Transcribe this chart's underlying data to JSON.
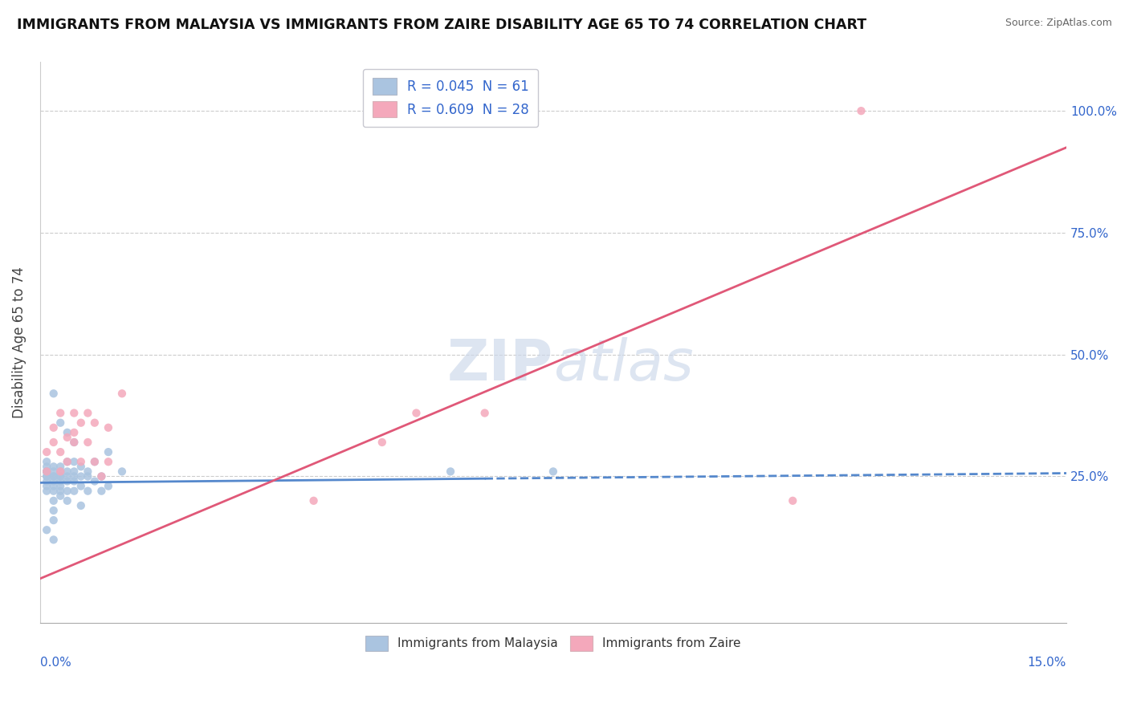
{
  "title": "IMMIGRANTS FROM MALAYSIA VS IMMIGRANTS FROM ZAIRE DISABILITY AGE 65 TO 74 CORRELATION CHART",
  "source": "Source: ZipAtlas.com",
  "ylabel": "Disability Age 65 to 74",
  "ylabel_right_labels": [
    "100.0%",
    "75.0%",
    "50.0%",
    "25.0%"
  ],
  "ylabel_right_vals": [
    1.0,
    0.75,
    0.5,
    0.25
  ],
  "xlim": [
    0.0,
    0.15
  ],
  "ylim": [
    -0.05,
    1.1
  ],
  "legend_r1": "R = 0.045  N = 61",
  "legend_r2": "R = 0.609  N = 28",
  "series1_color": "#aac4e0",
  "series2_color": "#f4a8bb",
  "line1_color": "#5588cc",
  "line2_color": "#e05878",
  "watermark_color": "#ccd8ea",
  "malaysia_x": [
    0.001,
    0.001,
    0.001,
    0.001,
    0.001,
    0.001,
    0.001,
    0.001,
    0.001,
    0.001,
    0.002,
    0.002,
    0.002,
    0.002,
    0.002,
    0.002,
    0.002,
    0.002,
    0.002,
    0.002,
    0.003,
    0.003,
    0.003,
    0.003,
    0.003,
    0.003,
    0.003,
    0.003,
    0.004,
    0.004,
    0.004,
    0.004,
    0.004,
    0.004,
    0.005,
    0.005,
    0.005,
    0.005,
    0.005,
    0.006,
    0.006,
    0.006,
    0.006,
    0.007,
    0.007,
    0.007,
    0.008,
    0.008,
    0.009,
    0.009,
    0.01,
    0.01,
    0.012,
    0.06,
    0.075,
    0.002,
    0.003,
    0.004,
    0.005,
    0.001,
    0.002
  ],
  "malaysia_y": [
    0.26,
    0.25,
    0.24,
    0.23,
    0.26,
    0.27,
    0.25,
    0.26,
    0.22,
    0.28,
    0.25,
    0.24,
    0.27,
    0.26,
    0.23,
    0.25,
    0.22,
    0.2,
    0.18,
    0.16,
    0.26,
    0.25,
    0.24,
    0.27,
    0.23,
    0.22,
    0.21,
    0.25,
    0.28,
    0.25,
    0.26,
    0.24,
    0.22,
    0.2,
    0.26,
    0.25,
    0.24,
    0.28,
    0.22,
    0.27,
    0.25,
    0.23,
    0.19,
    0.26,
    0.25,
    0.22,
    0.28,
    0.24,
    0.25,
    0.22,
    0.3,
    0.23,
    0.26,
    0.26,
    0.26,
    0.42,
    0.36,
    0.34,
    0.32,
    0.14,
    0.12
  ],
  "zaire_x": [
    0.001,
    0.001,
    0.002,
    0.002,
    0.003,
    0.003,
    0.003,
    0.004,
    0.004,
    0.005,
    0.005,
    0.005,
    0.006,
    0.006,
    0.007,
    0.007,
    0.008,
    0.008,
    0.009,
    0.01,
    0.01,
    0.012,
    0.05,
    0.055,
    0.065,
    0.04,
    0.11,
    0.12
  ],
  "zaire_y": [
    0.26,
    0.3,
    0.32,
    0.35,
    0.3,
    0.38,
    0.26,
    0.33,
    0.28,
    0.38,
    0.32,
    0.34,
    0.36,
    0.28,
    0.38,
    0.32,
    0.36,
    0.28,
    0.25,
    0.35,
    0.28,
    0.42,
    0.32,
    0.38,
    0.38,
    0.2,
    0.2,
    1.0
  ],
  "line1_intercept": 0.237,
  "line1_slope": 0.13,
  "line2_intercept": 0.04,
  "line2_slope": 5.9
}
